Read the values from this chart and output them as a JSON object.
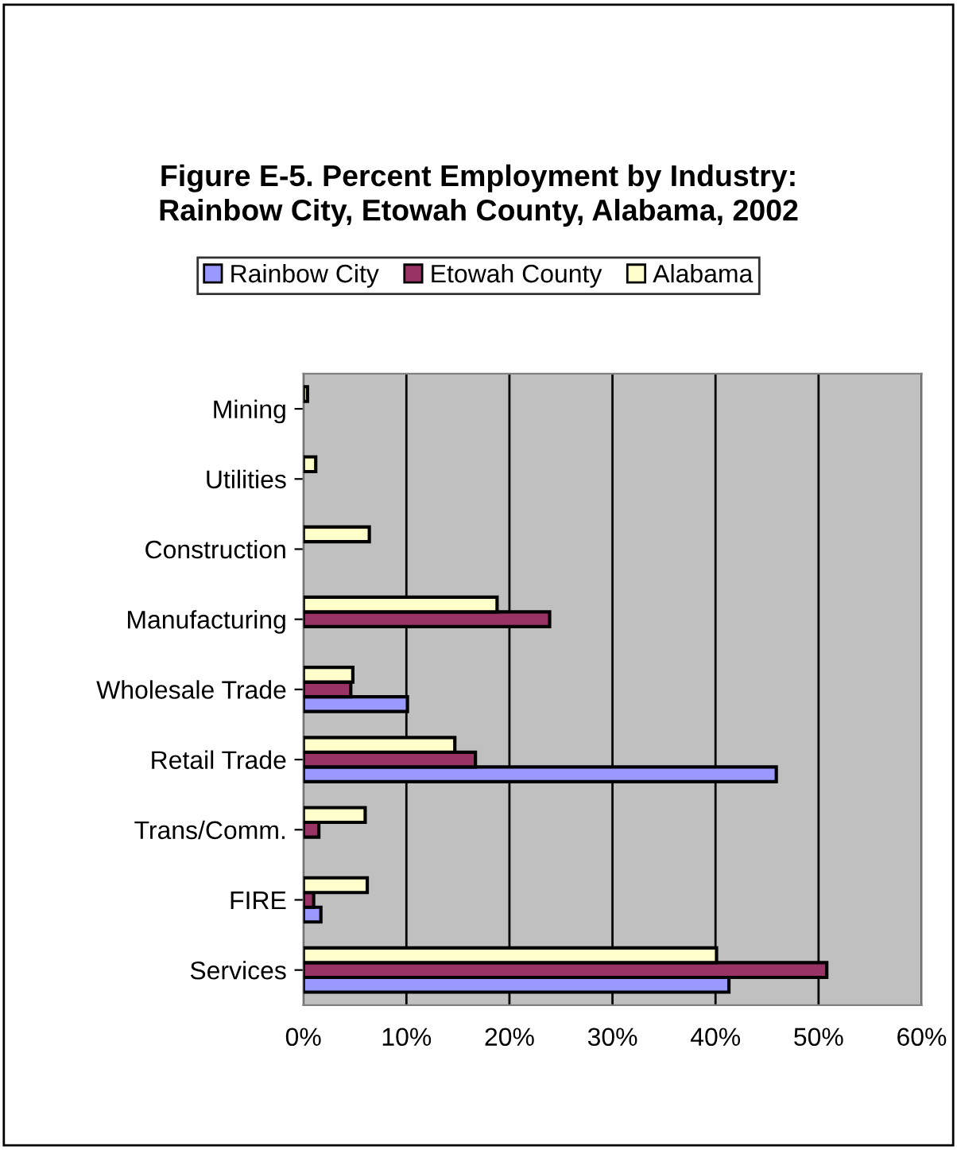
{
  "chart_data": {
    "type": "bar",
    "orientation": "horizontal",
    "title": "Figure E-5. Percent Employment by Industry: Rainbow City, Etowah County, Alabama, 2002",
    "categories": [
      "Mining",
      "Utilities",
      "Construction",
      "Manufacturing",
      "Wholesale Trade",
      "Retail Trade",
      "Trans/Comm.",
      "FIRE",
      "Services"
    ],
    "series": [
      {
        "name": "Rainbow City",
        "color": "#9999ff",
        "values": [
          null,
          null,
          null,
          null,
          10.1,
          45.9,
          null,
          1.7,
          41.3
        ]
      },
      {
        "name": "Etowah County",
        "color": "#993366",
        "values": [
          null,
          null,
          null,
          23.9,
          4.6,
          16.7,
          1.5,
          1.0,
          50.8
        ]
      },
      {
        "name": "Alabama",
        "color": "#ffffcc",
        "values": [
          0.4,
          1.2,
          6.4,
          18.8,
          4.8,
          14.7,
          6.0,
          6.2,
          40.1
        ]
      }
    ],
    "xlim": [
      0,
      60
    ],
    "xticks": [
      {
        "value": 0,
        "label": "0%"
      },
      {
        "value": 10,
        "label": "10%"
      },
      {
        "value": 20,
        "label": "20%"
      },
      {
        "value": 30,
        "label": "30%"
      },
      {
        "value": 40,
        "label": "40%"
      },
      {
        "value": 50,
        "label": "50%"
      },
      {
        "value": 60,
        "label": "60%"
      }
    ],
    "grid": "x",
    "legend": "top"
  }
}
